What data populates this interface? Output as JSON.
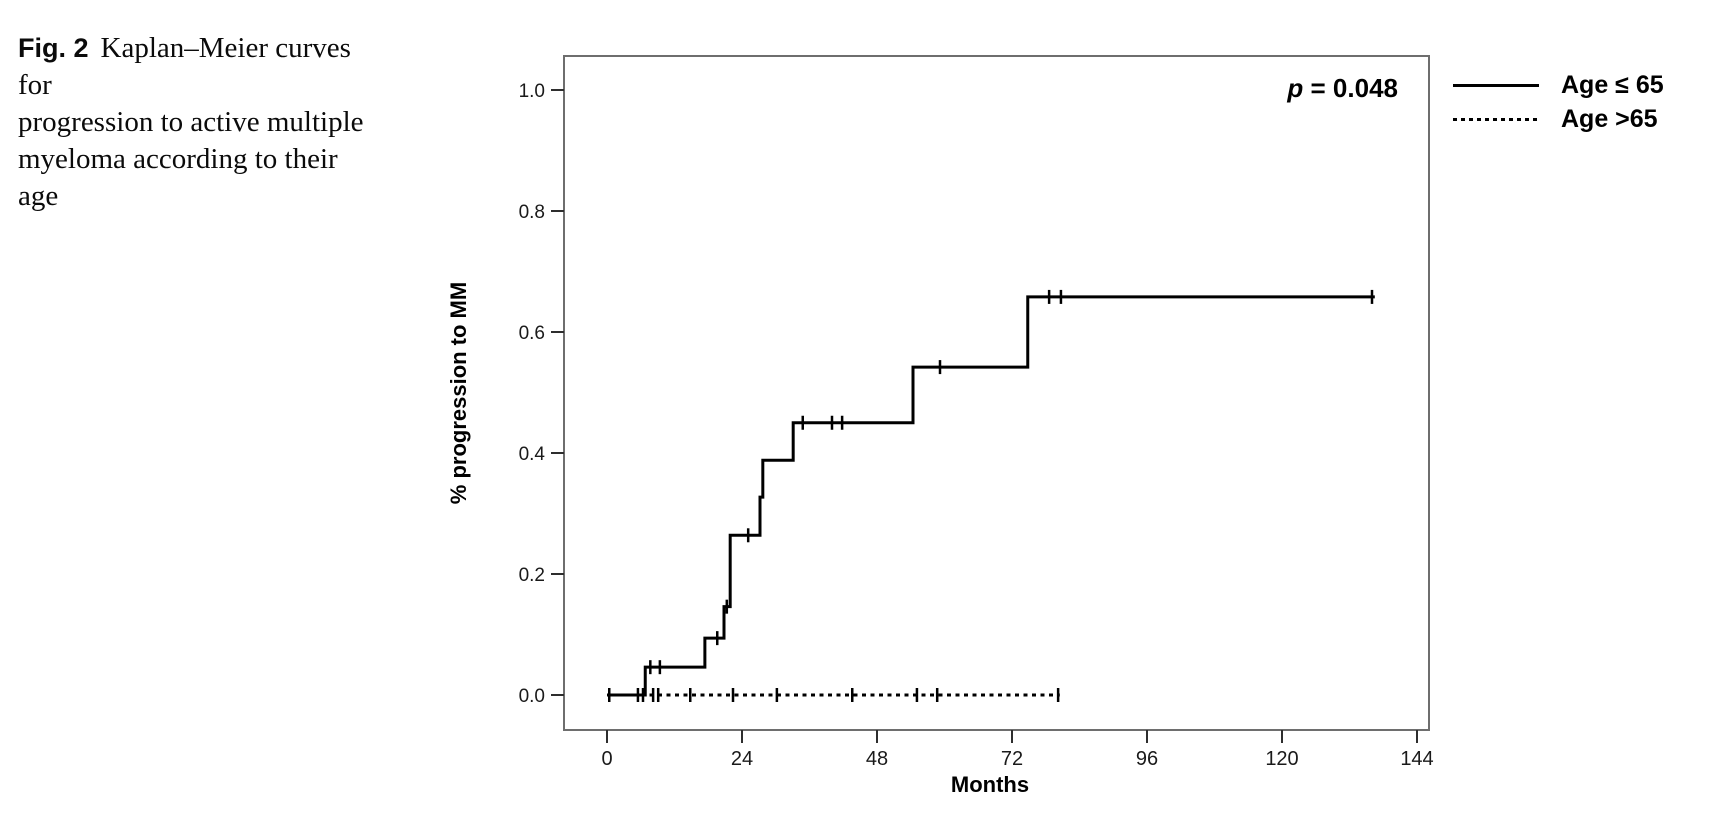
{
  "caption": {
    "label": "Fig. 2",
    "line1": "Kaplan–Meier curves for",
    "line2": "progression to active multiple",
    "line3": "myeloma according to their age"
  },
  "chart_data": {
    "type": "line",
    "subtype": "kaplan-meier-step-curves",
    "title": "",
    "xlabel": "Months",
    "ylabel": "% progression to MM",
    "xlim": [
      0,
      144
    ],
    "ylim": [
      0.0,
      1.0
    ],
    "xtick_labels": [
      "0",
      "24",
      "48",
      "72",
      "96",
      "120",
      "144"
    ],
    "xticks": [
      0,
      24,
      48,
      72,
      96,
      120,
      144
    ],
    "ytick_labels": [
      "0.0",
      "0.2",
      "0.4",
      "0.6",
      "0.8",
      "1.0"
    ],
    "yticks": [
      0.0,
      0.2,
      0.4,
      0.6,
      0.8,
      1.0
    ],
    "grid": false,
    "annotation": {
      "italic": "p",
      "text": " = 0.048"
    },
    "legend": {
      "position": "outside-right",
      "entries": [
        {
          "label": "Age ≤ 65",
          "style": "solid"
        },
        {
          "label": "Age >65",
          "style": "dotted"
        }
      ]
    },
    "series": [
      {
        "name": "Age ≤ 65",
        "style": "solid",
        "start": [
          0,
          0.0
        ],
        "end_x": 136.5,
        "steps": [
          [
            6.8,
            0.046
          ],
          [
            17.4,
            0.094
          ],
          [
            20.8,
            0.146
          ],
          [
            21.9,
            0.264
          ],
          [
            27.2,
            0.327
          ],
          [
            27.7,
            0.388
          ],
          [
            33.1,
            0.45
          ],
          [
            54.4,
            0.542
          ],
          [
            74.8,
            0.658
          ]
        ],
        "censors": [
          [
            7.7,
            0.046
          ],
          [
            9.4,
            0.046
          ],
          [
            19.6,
            0.094
          ],
          [
            21.3,
            0.146
          ],
          [
            25.1,
            0.264
          ],
          [
            34.8,
            0.45
          ],
          [
            40.0,
            0.45
          ],
          [
            41.8,
            0.45
          ],
          [
            59.2,
            0.542
          ],
          [
            78.6,
            0.658
          ],
          [
            80.7,
            0.658
          ],
          [
            136.0,
            0.658
          ]
        ]
      },
      {
        "name": "Age >65",
        "style": "dotted",
        "start": [
          0,
          0.0
        ],
        "end_x": 80.5,
        "steps": [],
        "censors": [
          [
            0.4,
            0.0
          ],
          [
            5.5,
            0.0
          ],
          [
            6.4,
            0.0
          ],
          [
            8.2,
            0.0
          ],
          [
            9.1,
            0.0
          ],
          [
            14.8,
            0.0
          ],
          [
            22.4,
            0.0
          ],
          [
            30.2,
            0.0
          ],
          [
            43.6,
            0.0
          ],
          [
            55.1,
            0.0
          ],
          [
            58.7,
            0.0
          ],
          [
            80.2,
            0.0
          ]
        ]
      }
    ]
  },
  "colors": {
    "curve": "#000000",
    "plot_border": "#6e6e6e",
    "tick": "#2e2e2e",
    "tick_label": "#1a1a1a",
    "text": "#000000"
  }
}
